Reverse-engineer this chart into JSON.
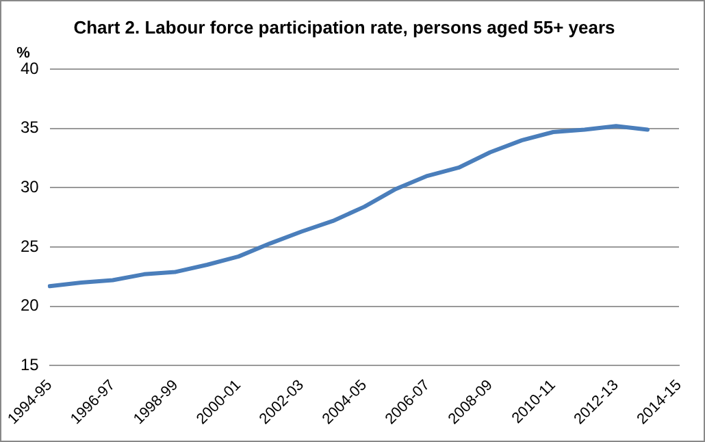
{
  "chart_data": {
    "type": "line",
    "title": "Chart 2. Labour force participation rate, persons aged 55+ years",
    "ylabel": "%",
    "categories": [
      "1994-95",
      null,
      "1996-97",
      null,
      "1998-99",
      null,
      "2000-01",
      null,
      "2002-03",
      null,
      "2004-05",
      null,
      "2006-07",
      null,
      "2008-09",
      null,
      "2010-11",
      null,
      "2012-13",
      null,
      "2014-15"
    ],
    "series": [
      {
        "color": "#4a7ebb",
        "values": [
          21.7,
          22.0,
          22.2,
          22.7,
          22.9,
          23.5,
          24.2,
          25.3,
          26.3,
          27.2,
          28.4,
          29.9,
          31.0,
          31.7,
          33.0,
          34.0,
          34.7,
          34.9,
          35.2,
          34.9,
          null
        ]
      }
    ],
    "ylim": [
      15,
      40
    ],
    "yticks": [
      15,
      20,
      25,
      30,
      35,
      40
    ],
    "grid": "y",
    "legend": false,
    "marker": "none",
    "line_style": "solid"
  }
}
